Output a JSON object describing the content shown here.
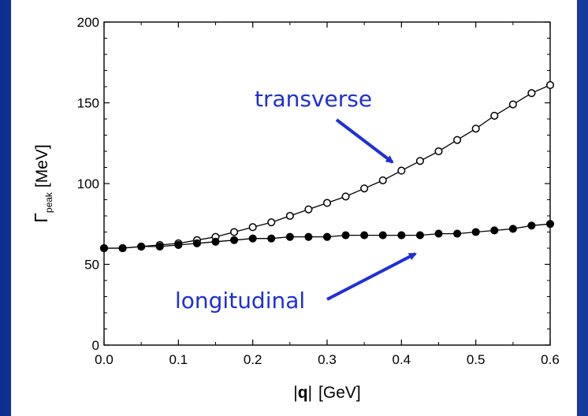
{
  "chart_data": {
    "type": "line",
    "xlabel_parts": [
      "|",
      "q",
      "|",
      "[GeV]"
    ],
    "ylabel_parts": [
      "Γ",
      "peak",
      "[MeV]"
    ],
    "xlim": [
      0.0,
      0.6
    ],
    "ylim": [
      0,
      200
    ],
    "x_ticks": [
      "0.0",
      "0.1",
      "0.2",
      "0.3",
      "0.4",
      "0.5",
      "0.6"
    ],
    "y_ticks": [
      "0",
      "50",
      "100",
      "150",
      "200"
    ],
    "annotations": [
      "transverse",
      "longitudinal"
    ],
    "series": [
      {
        "marker": "open-circle",
        "x": [
          0.0,
          0.025,
          0.05,
          0.075,
          0.1,
          0.125,
          0.15,
          0.175,
          0.2,
          0.225,
          0.25,
          0.275,
          0.3,
          0.325,
          0.35,
          0.375,
          0.4,
          0.425,
          0.45,
          0.475,
          0.5,
          0.525,
          0.55,
          0.575,
          0.6
        ],
        "values": [
          60,
          60,
          61,
          62,
          63,
          65,
          67,
          70,
          73,
          76,
          80,
          84,
          88,
          92,
          97,
          102,
          108,
          114,
          120,
          127,
          134,
          142,
          149,
          156,
          161
        ]
      },
      {
        "marker": "filled-circle",
        "x": [
          0.0,
          0.025,
          0.05,
          0.075,
          0.1,
          0.125,
          0.15,
          0.175,
          0.2,
          0.225,
          0.25,
          0.275,
          0.3,
          0.325,
          0.35,
          0.375,
          0.4,
          0.425,
          0.45,
          0.475,
          0.5,
          0.525,
          0.55,
          0.575,
          0.6
        ],
        "values": [
          60,
          60,
          61,
          61,
          62,
          63,
          64,
          65,
          66,
          66,
          67,
          67,
          67,
          68,
          68,
          68,
          68,
          68,
          69,
          69,
          70,
          71,
          72,
          74,
          75
        ]
      }
    ]
  },
  "colors": {
    "background": "#1a3ea8",
    "annotation": "#1f2fd6",
    "plot_line": "#000000"
  }
}
